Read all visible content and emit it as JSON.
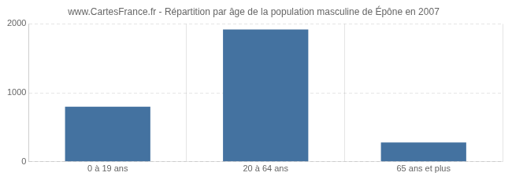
{
  "chart_data": {
    "type": "bar",
    "title": "www.CartesFrance.fr - Répartition par âge de la population masculine de Épône en 2007",
    "categories": [
      "0 à 19 ans",
      "20 à 64 ans",
      "65 ans et plus"
    ],
    "values": [
      800,
      1920,
      280
    ],
    "color": "#4472a0",
    "ylim": [
      0,
      2000
    ],
    "yticks": [
      0,
      1000,
      2000
    ],
    "grid": true
  }
}
